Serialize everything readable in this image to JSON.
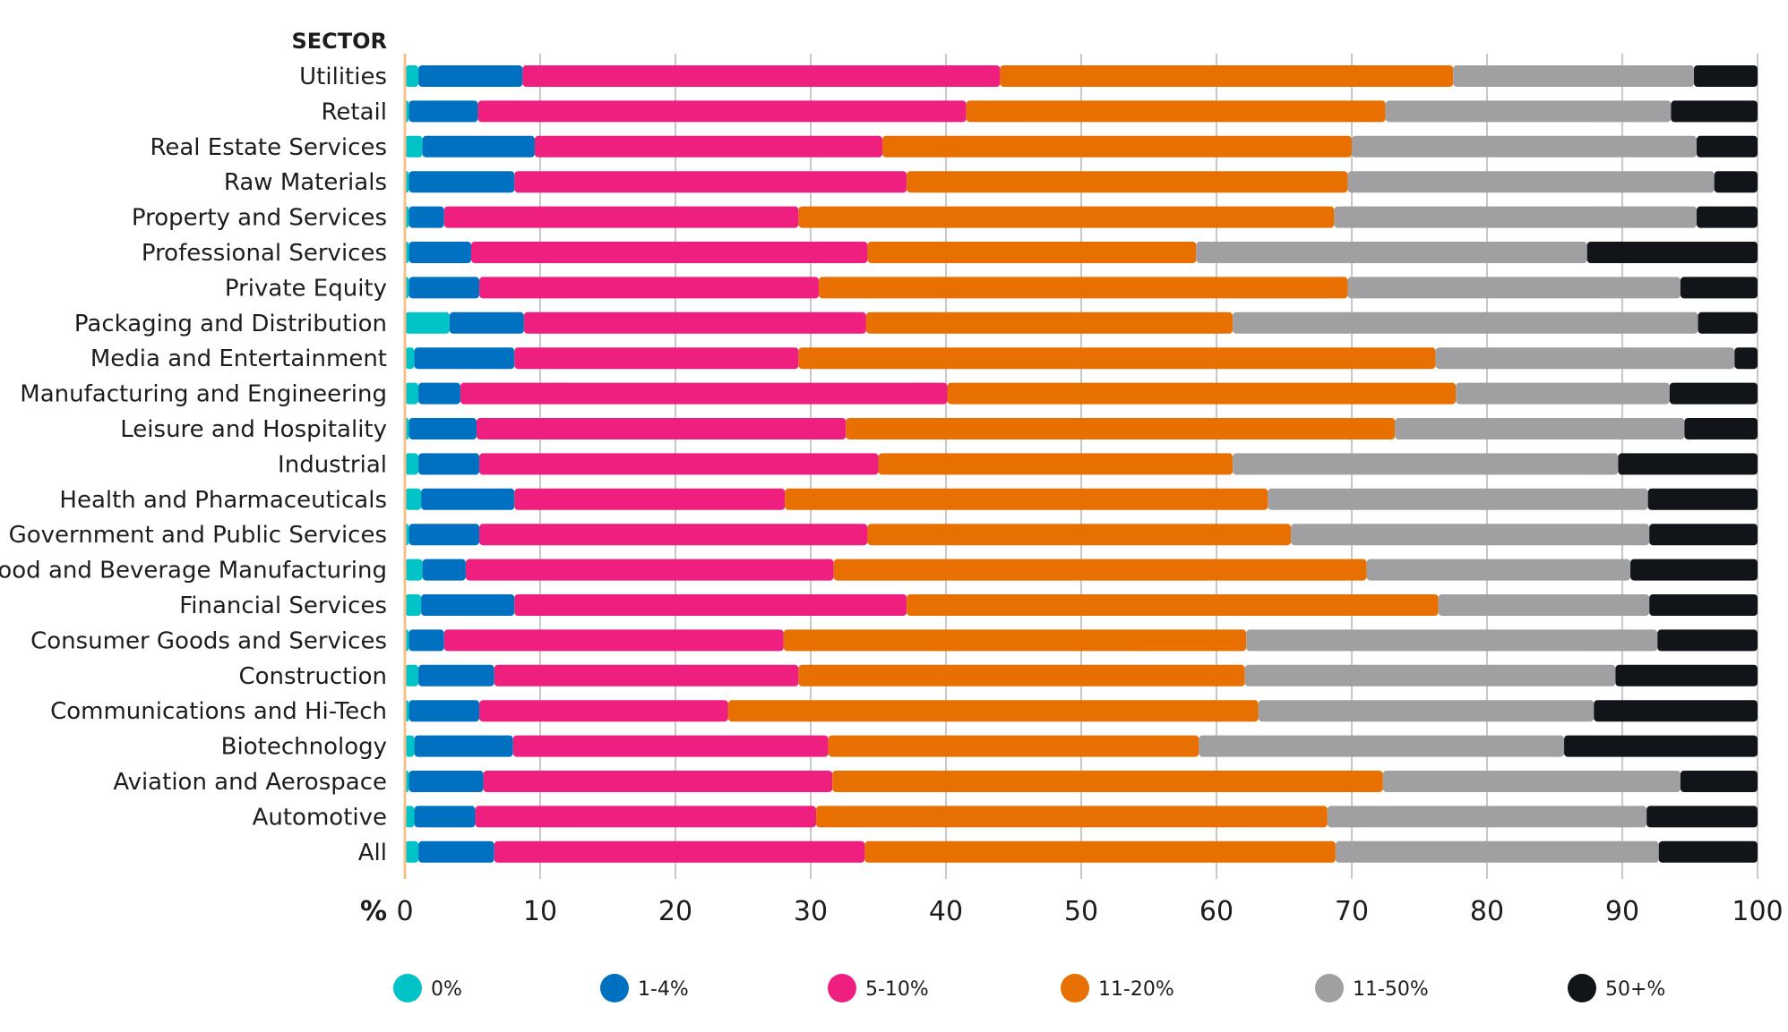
{
  "chart_data": {
    "type": "bar",
    "orientation": "horizontal",
    "stacked": true,
    "ylabel": "SECTOR",
    "xlabel": "%",
    "xlim": [
      0,
      100
    ],
    "xticks": [
      "0",
      "10",
      "20",
      "30",
      "40",
      "50",
      "60",
      "70",
      "80",
      "90",
      "100"
    ],
    "grid": true,
    "legend_position": "bottom",
    "categories": [
      "Utilities",
      "Retail",
      "Real Estate Services",
      "Raw Materials",
      "Property and Services",
      "Professional Services",
      "Private Equity",
      "Packaging and Distribution",
      "Media and Entertainment",
      "Manufacturing and Engineering",
      "Leisure and Hospitality",
      "Industrial",
      "Health and Pharmaceuticals",
      "Government and Public Services",
      "Food and Beverage Manufacturing",
      "Financial Services",
      "Consumer Goods and Services",
      "Construction",
      "Communications and Hi-Tech",
      "Biotechnology",
      "Aviation and Aerospace",
      "Automotive",
      "All"
    ],
    "series": [
      {
        "name": "0%",
        "color": "#00c3c8",
        "values": [
          1.0,
          0.3,
          1.3,
          0.3,
          0.3,
          0.3,
          0.3,
          3.3,
          0.7,
          1.0,
          0.3,
          1.0,
          1.2,
          0.3,
          1.3,
          1.2,
          0.3,
          1.0,
          0.3,
          0.7,
          0.3,
          0.7,
          1.0
        ]
      },
      {
        "name": "1-4%",
        "color": "#0070c0",
        "values": [
          7.7,
          5.1,
          8.3,
          7.8,
          2.6,
          4.6,
          5.2,
          5.5,
          7.4,
          3.1,
          5.0,
          4.5,
          6.9,
          5.2,
          3.2,
          6.9,
          2.6,
          5.6,
          5.2,
          7.3,
          5.5,
          4.5,
          5.6
        ]
      },
      {
        "name": "5-10%",
        "color": "#ee1f7f",
        "values": [
          35.3,
          36.1,
          25.7,
          29.0,
          26.2,
          29.3,
          25.1,
          25.3,
          21.0,
          36.0,
          27.3,
          29.5,
          20.0,
          28.7,
          27.2,
          29.0,
          25.1,
          22.5,
          18.4,
          23.3,
          25.8,
          25.2,
          27.4
        ]
      },
      {
        "name": "11-20%",
        "color": "#e87000",
        "values": [
          33.5,
          31.0,
          34.7,
          32.6,
          39.6,
          24.3,
          39.1,
          27.1,
          47.1,
          37.6,
          40.6,
          26.2,
          35.7,
          31.3,
          39.4,
          39.3,
          34.2,
          33.0,
          39.2,
          27.4,
          40.7,
          37.8,
          34.8
        ]
      },
      {
        "name": "11-50%",
        "color": "#a0a0a2",
        "values": [
          17.8,
          21.1,
          25.5,
          27.1,
          26.8,
          28.9,
          24.6,
          34.4,
          22.1,
          15.8,
          21.4,
          28.5,
          28.1,
          26.5,
          19.5,
          15.6,
          30.4,
          27.4,
          24.8,
          27.0,
          22.0,
          23.6,
          23.9
        ]
      },
      {
        "name": "50+%",
        "color": "#111418",
        "values": [
          4.7,
          6.4,
          4.5,
          3.2,
          4.5,
          12.6,
          5.7,
          4.4,
          1.7,
          6.5,
          5.4,
          10.3,
          8.1,
          8.0,
          9.4,
          8.0,
          7.4,
          10.5,
          12.1,
          14.3,
          5.7,
          8.2,
          7.3
        ]
      }
    ]
  }
}
